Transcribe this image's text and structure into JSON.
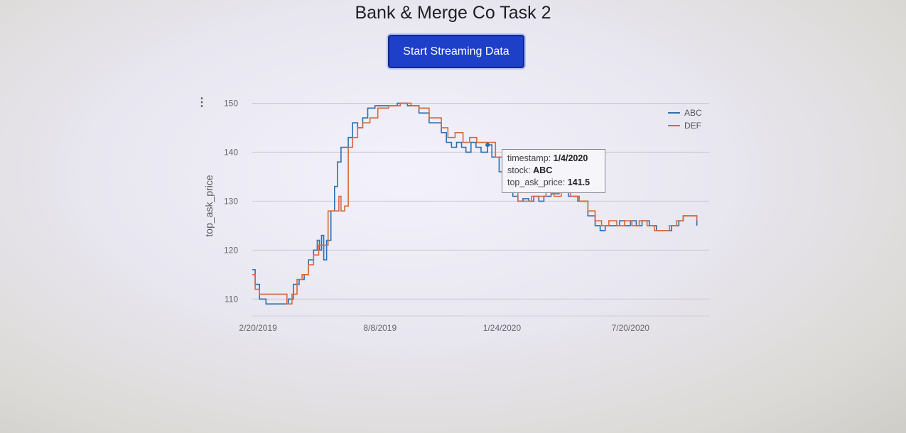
{
  "header": {
    "title": "Bank & Merge Co Task 2",
    "button_label": "Start Streaming Data"
  },
  "tooltip": {
    "rows": [
      {
        "key": "timestamp:",
        "value": "1/4/2020"
      },
      {
        "key": "stock:",
        "value": "ABC"
      },
      {
        "key": "top_ask_price:",
        "value": "141.5"
      }
    ]
  },
  "chart_data": {
    "type": "line",
    "title": "",
    "xlabel": "",
    "ylabel": "top_ask_price",
    "ylim": [
      107,
      150.5
    ],
    "yticks": [
      110,
      120,
      130,
      140,
      150
    ],
    "xlim": [
      "2019-02-12",
      "2020-11-06"
    ],
    "xticks": [
      {
        "date": "2019-02-20",
        "label": "2/20/2019"
      },
      {
        "date": "2019-08-08",
        "label": "8/8/2019"
      },
      {
        "date": "2020-01-24",
        "label": "1/24/2020"
      },
      {
        "date": "2020-07-20",
        "label": "7/20/2020"
      }
    ],
    "grid": true,
    "legend_position": "top-right",
    "colors": {
      "ABC": "#2f6fad",
      "DEF": "#d6683a"
    },
    "series": [
      {
        "name": "ABC",
        "points": [
          [
            "2019-02-12",
            116
          ],
          [
            "2019-02-16",
            113
          ],
          [
            "2019-02-22",
            110
          ],
          [
            "2019-03-03",
            109
          ],
          [
            "2019-03-20",
            109
          ],
          [
            "2019-04-03",
            110
          ],
          [
            "2019-04-10",
            113
          ],
          [
            "2019-04-18",
            114
          ],
          [
            "2019-04-25",
            115
          ],
          [
            "2019-05-01",
            118
          ],
          [
            "2019-05-08",
            120
          ],
          [
            "2019-05-13",
            122
          ],
          [
            "2019-05-16",
            120
          ],
          [
            "2019-05-19",
            123
          ],
          [
            "2019-05-22",
            118
          ],
          [
            "2019-05-26",
            122
          ],
          [
            "2019-06-01",
            128
          ],
          [
            "2019-06-06",
            133
          ],
          [
            "2019-06-10",
            138
          ],
          [
            "2019-06-15",
            141
          ],
          [
            "2019-06-20",
            141
          ],
          [
            "2019-06-25",
            143
          ],
          [
            "2019-07-01",
            146
          ],
          [
            "2019-07-08",
            145
          ],
          [
            "2019-07-15",
            147
          ],
          [
            "2019-07-22",
            149
          ],
          [
            "2019-08-01",
            149.5
          ],
          [
            "2019-08-20",
            149.5
          ],
          [
            "2019-09-01",
            150
          ],
          [
            "2019-09-15",
            149.5
          ],
          [
            "2019-10-01",
            148
          ],
          [
            "2019-10-15",
            146
          ],
          [
            "2019-11-01",
            144
          ],
          [
            "2019-11-08",
            142
          ],
          [
            "2019-11-15",
            141
          ],
          [
            "2019-11-22",
            142
          ],
          [
            "2019-11-29",
            141
          ],
          [
            "2019-12-05",
            140
          ],
          [
            "2019-12-12",
            142
          ],
          [
            "2019-12-19",
            141
          ],
          [
            "2019-12-26",
            140
          ],
          [
            "2020-01-04",
            141.5
          ],
          [
            "2020-01-10",
            139
          ],
          [
            "2020-01-20",
            136
          ],
          [
            "2020-02-01",
            133
          ],
          [
            "2020-02-08",
            131
          ],
          [
            "2020-02-15",
            130
          ],
          [
            "2020-02-22",
            130.5
          ],
          [
            "2020-03-01",
            130
          ],
          [
            "2020-03-08",
            131
          ],
          [
            "2020-03-15",
            130
          ],
          [
            "2020-03-22",
            131
          ],
          [
            "2020-04-01",
            131.5
          ],
          [
            "2020-04-12",
            132
          ],
          [
            "2020-04-25",
            131
          ],
          [
            "2020-05-08",
            130
          ],
          [
            "2020-05-22",
            127
          ],
          [
            "2020-06-01",
            125
          ],
          [
            "2020-06-08",
            124
          ],
          [
            "2020-06-15",
            125
          ],
          [
            "2020-06-25",
            125
          ],
          [
            "2020-07-05",
            126
          ],
          [
            "2020-07-12",
            125
          ],
          [
            "2020-07-20",
            126
          ],
          [
            "2020-07-28",
            125
          ],
          [
            "2020-08-05",
            126
          ],
          [
            "2020-08-15",
            125
          ],
          [
            "2020-08-25",
            124
          ],
          [
            "2020-09-05",
            124
          ],
          [
            "2020-09-15",
            125
          ],
          [
            "2020-09-25",
            126
          ],
          [
            "2020-10-01",
            127
          ],
          [
            "2020-10-12",
            127
          ],
          [
            "2020-10-20",
            125
          ]
        ]
      },
      {
        "name": "DEF",
        "points": [
          [
            "2019-02-12",
            115
          ],
          [
            "2019-02-16",
            112
          ],
          [
            "2019-02-22",
            111
          ],
          [
            "2019-03-03",
            111
          ],
          [
            "2019-03-20",
            111
          ],
          [
            "2019-04-01",
            109
          ],
          [
            "2019-04-08",
            111
          ],
          [
            "2019-04-15",
            114
          ],
          [
            "2019-04-22",
            115
          ],
          [
            "2019-05-01",
            117
          ],
          [
            "2019-05-08",
            119
          ],
          [
            "2019-05-15",
            121
          ],
          [
            "2019-05-22",
            121
          ],
          [
            "2019-05-28",
            128
          ],
          [
            "2019-06-06",
            128
          ],
          [
            "2019-06-12",
            131
          ],
          [
            "2019-06-15",
            128
          ],
          [
            "2019-06-20",
            129
          ],
          [
            "2019-06-25",
            141
          ],
          [
            "2019-07-01",
            143
          ],
          [
            "2019-07-08",
            145
          ],
          [
            "2019-07-15",
            146
          ],
          [
            "2019-07-25",
            147
          ],
          [
            "2019-08-05",
            149
          ],
          [
            "2019-08-20",
            149.5
          ],
          [
            "2019-09-05",
            150
          ],
          [
            "2019-09-20",
            149.5
          ],
          [
            "2019-10-01",
            149
          ],
          [
            "2019-10-15",
            147
          ],
          [
            "2019-11-01",
            145
          ],
          [
            "2019-11-10",
            143
          ],
          [
            "2019-11-20",
            144
          ],
          [
            "2019-12-01",
            142
          ],
          [
            "2019-12-10",
            143
          ],
          [
            "2019-12-20",
            142
          ],
          [
            "2020-01-04",
            142
          ],
          [
            "2020-01-15",
            139
          ],
          [
            "2020-01-25",
            135
          ],
          [
            "2020-02-05",
            132
          ],
          [
            "2020-02-15",
            130
          ],
          [
            "2020-02-25",
            130
          ],
          [
            "2020-03-05",
            131
          ],
          [
            "2020-03-15",
            131
          ],
          [
            "2020-03-25",
            132
          ],
          [
            "2020-04-05",
            131
          ],
          [
            "2020-04-15",
            132
          ],
          [
            "2020-04-28",
            131
          ],
          [
            "2020-05-10",
            130
          ],
          [
            "2020-05-22",
            128
          ],
          [
            "2020-06-01",
            126
          ],
          [
            "2020-06-10",
            125
          ],
          [
            "2020-06-20",
            126
          ],
          [
            "2020-07-01",
            125
          ],
          [
            "2020-07-12",
            126
          ],
          [
            "2020-07-22",
            125
          ],
          [
            "2020-08-01",
            126
          ],
          [
            "2020-08-12",
            125
          ],
          [
            "2020-08-22",
            124
          ],
          [
            "2020-09-01",
            124
          ],
          [
            "2020-09-12",
            125
          ],
          [
            "2020-09-22",
            126
          ],
          [
            "2020-10-01",
            127
          ],
          [
            "2020-10-12",
            127
          ],
          [
            "2020-10-20",
            126
          ]
        ]
      }
    ]
  }
}
